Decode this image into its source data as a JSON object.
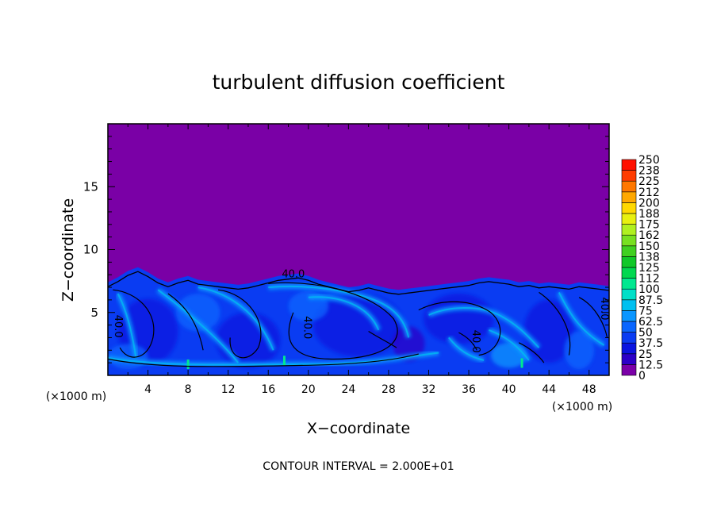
{
  "chart_data": {
    "type": "heatmap",
    "title": "turbulent diffusion coefficient",
    "xlabel": "X−coordinate",
    "ylabel": "Z−coordinate",
    "x_unit_left": "(×1000 m)",
    "x_unit_right": "(×1000 m)",
    "xlim": [
      0,
      50
    ],
    "ylim": [
      0,
      20
    ],
    "xticks": [
      4,
      8,
      12,
      16,
      20,
      24,
      28,
      32,
      36,
      40,
      44,
      48
    ],
    "xtick_labels": [
      "4",
      "8",
      "12",
      "16",
      "20",
      "24",
      "28",
      "32",
      "36",
      "40",
      "44",
      "48"
    ],
    "yticks": [
      5,
      10,
      15
    ],
    "ytick_labels": [
      "5",
      "10",
      "15"
    ],
    "background_color": "#7a00a6",
    "colorbar": {
      "labels": [
        "0",
        "12.5",
        "25",
        "37.5",
        "50",
        "62.5",
        "75",
        "87.5",
        "100",
        "112",
        "125",
        "138",
        "150",
        "162",
        "175",
        "188",
        "200",
        "212",
        "225",
        "238",
        "250"
      ],
      "colors": [
        "#7b00a8",
        "#2c00c8",
        "#0a14e0",
        "#0a3cf2",
        "#0a66ff",
        "#0a96ff",
        "#00c0f0",
        "#00e0c8",
        "#00e890",
        "#00d850",
        "#10c828",
        "#40d020",
        "#78e020",
        "#b0f020",
        "#e8f010",
        "#ffd800",
        "#ffa800",
        "#ff7800",
        "#ff3c00",
        "#ff1000",
        "#ff7070"
      ]
    },
    "contour_labels": [
      {
        "text": "40.0",
        "x": 18.5,
        "y": 7.8
      },
      {
        "text": "40.0",
        "x": 0.7,
        "y": 3.9
      },
      {
        "text": "40.0",
        "x": 19.6,
        "y": 3.8
      },
      {
        "text": "40.0",
        "x": 36.4,
        "y": 2.7
      },
      {
        "text": "40.0",
        "x": 49.2,
        "y": 5.3
      }
    ],
    "boundary_layer_top": [
      [
        0,
        7.4
      ],
      [
        1,
        7.8
      ],
      [
        2,
        8.3
      ],
      [
        3,
        8.6
      ],
      [
        4,
        8.2
      ],
      [
        5,
        7.7
      ],
      [
        6,
        7.4
      ],
      [
        7,
        7.7
      ],
      [
        8,
        7.9
      ],
      [
        9,
        7.6
      ],
      [
        10,
        7.5
      ],
      [
        11,
        7.4
      ],
      [
        12,
        7.3
      ],
      [
        13,
        7.2
      ],
      [
        14,
        7.3
      ],
      [
        15,
        7.5
      ],
      [
        16,
        7.7
      ],
      [
        17,
        7.9
      ],
      [
        18,
        8.0
      ],
      [
        19,
        8.1
      ],
      [
        20,
        7.9
      ],
      [
        21,
        7.6
      ],
      [
        22,
        7.4
      ],
      [
        23,
        7.2
      ],
      [
        24,
        7.0
      ],
      [
        25,
        7.1
      ],
      [
        26,
        7.3
      ],
      [
        27,
        7.1
      ],
      [
        28,
        6.9
      ],
      [
        29,
        6.8
      ],
      [
        30,
        6.9
      ],
      [
        31,
        7.0
      ],
      [
        32,
        7.1
      ],
      [
        33,
        7.2
      ],
      [
        34,
        7.3
      ],
      [
        35,
        7.4
      ],
      [
        36,
        7.5
      ],
      [
        37,
        7.7
      ],
      [
        38,
        7.8
      ],
      [
        39,
        7.7
      ],
      [
        40,
        7.6
      ],
      [
        41,
        7.4
      ],
      [
        42,
        7.5
      ],
      [
        43,
        7.3
      ],
      [
        44,
        7.4
      ],
      [
        45,
        7.3
      ],
      [
        46,
        7.2
      ],
      [
        47,
        7.4
      ],
      [
        48,
        7.3
      ],
      [
        49,
        7.2
      ],
      [
        50,
        7.1
      ]
    ],
    "contour_interval": "CONTOUR INTERVAL = 2.000E+01"
  }
}
